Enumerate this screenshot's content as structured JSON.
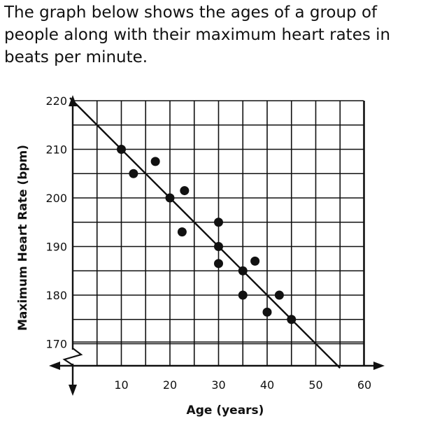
{
  "prompt": "The graph below shows the ages of a group of people along with their maximum heart rates in beats per minute.",
  "chart_data": {
    "type": "scatter",
    "xlabel": "Age (years)",
    "ylabel": "Maximum Heart Rate (bpm)",
    "xlim": [
      0,
      60
    ],
    "ylim": [
      170,
      220
    ],
    "x_ticks": [
      "10",
      "20",
      "30",
      "40",
      "50",
      "60"
    ],
    "y_ticks": [
      "170",
      "180",
      "190",
      "200",
      "210",
      "220"
    ],
    "grid": true,
    "y_axis_break": true,
    "points": [
      {
        "x": 10,
        "y": 210
      },
      {
        "x": 12.5,
        "y": 205
      },
      {
        "x": 17,
        "y": 207.5
      },
      {
        "x": 20,
        "y": 200
      },
      {
        "x": 22.5,
        "y": 193
      },
      {
        "x": 23,
        "y": 201.5
      },
      {
        "x": 30,
        "y": 195
      },
      {
        "x": 30,
        "y": 190
      },
      {
        "x": 30,
        "y": 186.5
      },
      {
        "x": 35,
        "y": 185
      },
      {
        "x": 35,
        "y": 180
      },
      {
        "x": 37.5,
        "y": 187
      },
      {
        "x": 40,
        "y": 176.5
      },
      {
        "x": 42.5,
        "y": 180
      },
      {
        "x": 45,
        "y": 175
      }
    ],
    "trend_line": {
      "start": {
        "x": 0,
        "y": 220
      },
      "end": {
        "x": 55,
        "y": 165
      }
    },
    "colors": {
      "ink": "#111111",
      "background": "#ffffff"
    }
  }
}
